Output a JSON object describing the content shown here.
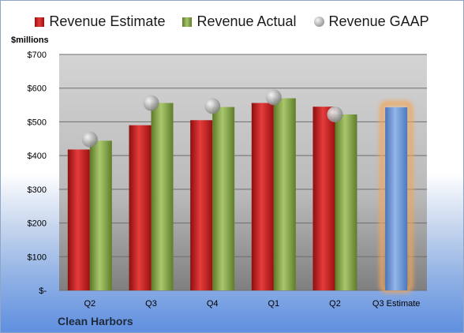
{
  "legend": {
    "estimate": "Revenue Estimate",
    "actual": "Revenue Actual",
    "gaap": "Revenue GAAP"
  },
  "unit_label": "$millions",
  "company": "Clean Harbors",
  "colors": {
    "estimate": "#d42a2a",
    "actual": "#8db04a",
    "gaap": "#b0b0b0",
    "forecast": "#6f9bd8",
    "forecast_glow": "#f2a65a",
    "plot_bg": "#c9c9c9"
  },
  "chart_data": {
    "type": "bar",
    "categories": [
      "Q2",
      "Q3",
      "Q4",
      "Q1",
      "Q2",
      "Q3 Estimate"
    ],
    "ylim": [
      0,
      700
    ],
    "yticks": [
      0,
      100,
      200,
      300,
      400,
      500,
      600,
      700
    ],
    "ytick_labels": [
      "$-",
      "$100",
      "$200",
      "$300",
      "$400",
      "$500",
      "$600",
      "$700"
    ],
    "ylabel": "$millions",
    "grid": true,
    "legend_position": "top",
    "series": [
      {
        "name": "Revenue Estimate",
        "type": "bar",
        "values": [
          418,
          490,
          505,
          556,
          545,
          null
        ]
      },
      {
        "name": "Revenue Actual",
        "type": "bar",
        "values": [
          444,
          556,
          544,
          570,
          522,
          543
        ]
      },
      {
        "name": "Revenue GAAP",
        "type": "scatter",
        "values": [
          448,
          556,
          547,
          573,
          522,
          null
        ]
      }
    ]
  }
}
